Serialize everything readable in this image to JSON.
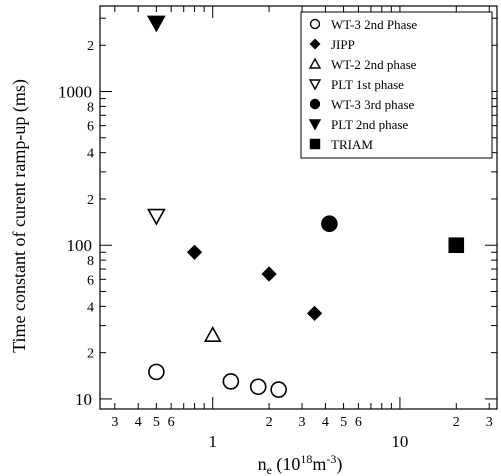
{
  "chart_data": {
    "type": "scatter",
    "title": "",
    "xlabel": "n_e (10^18 m^-3)",
    "xlabel_parts": {
      "main": "n",
      "sub": "e",
      "paren_open": " (10",
      "sup1": "18",
      "unit": "m",
      "sup2": "-3",
      "paren_close": ")"
    },
    "ylabel": "Time constant of curent ramp-up (ms)",
    "x_scale": "log",
    "y_scale": "log",
    "xlim": [
      0.25,
      33
    ],
    "ylim": [
      8.6,
      3600
    ],
    "x_major_ticks": [
      {
        "value": 1,
        "label": "1"
      },
      {
        "value": 10,
        "label": "10"
      }
    ],
    "x_minor_ticks": [
      {
        "value": 0.3,
        "label": "3"
      },
      {
        "value": 0.4,
        "label": "4"
      },
      {
        "value": 0.5,
        "label": "5"
      },
      {
        "value": 0.6,
        "label": "6"
      },
      {
        "value": 0.7,
        "label": ""
      },
      {
        "value": 0.8,
        "label": ""
      },
      {
        "value": 0.9,
        "label": ""
      },
      {
        "value": 2,
        "label": "2"
      },
      {
        "value": 3,
        "label": "3"
      },
      {
        "value": 4,
        "label": "4"
      },
      {
        "value": 5,
        "label": "5"
      },
      {
        "value": 6,
        "label": "6"
      },
      {
        "value": 7,
        "label": ""
      },
      {
        "value": 8,
        "label": ""
      },
      {
        "value": 9,
        "label": ""
      },
      {
        "value": 20,
        "label": "2"
      },
      {
        "value": 30,
        "label": "3"
      }
    ],
    "y_major_ticks": [
      {
        "value": 10,
        "label": "10"
      },
      {
        "value": 100,
        "label": "100"
      },
      {
        "value": 1000,
        "label": "1000"
      }
    ],
    "y_minor_ticks": [
      {
        "value": 20,
        "label": "2"
      },
      {
        "value": 30,
        "label": ""
      },
      {
        "value": 40,
        "label": "4"
      },
      {
        "value": 50,
        "label": ""
      },
      {
        "value": 60,
        "label": ""
      },
      {
        "value": 70,
        "label": ""
      },
      {
        "value": 80,
        "label": ""
      },
      {
        "value": 90,
        "label": ""
      },
      {
        "value": 200,
        "label": "2"
      },
      {
        "value": 300,
        "label": ""
      },
      {
        "value": 400,
        "label": "4"
      },
      {
        "value": 500,
        "label": ""
      },
      {
        "value": 600,
        "label": "6"
      },
      {
        "value": 700,
        "label": ""
      },
      {
        "value": 800,
        "label": "8"
      },
      {
        "value": 900,
        "label": ""
      },
      {
        "value": 2000,
        "label": "2"
      },
      {
        "value": 3000,
        "label": ""
      }
    ],
    "y_tick_label_overrides": [
      {
        "value": 60,
        "label": "6"
      },
      {
        "value": 80,
        "label": "8"
      }
    ],
    "grid": false,
    "legend_position": "top-right",
    "series": [
      {
        "name": "WT-3 2nd Phase",
        "marker": "circle-open",
        "points": [
          [
            0.5,
            15
          ],
          [
            1.25,
            13
          ],
          [
            1.75,
            12
          ],
          [
            2.25,
            11.5
          ]
        ]
      },
      {
        "name": "JIPP",
        "marker": "diamond-filled",
        "points": [
          [
            0.8,
            90
          ],
          [
            2.0,
            65
          ],
          [
            3.5,
            36
          ]
        ]
      },
      {
        "name": "WT-2 2nd phase",
        "marker": "triangle-up-open",
        "points": [
          [
            1.0,
            26
          ]
        ]
      },
      {
        "name": "PLT 1st phase",
        "marker": "triangle-down-open",
        "points": [
          [
            0.5,
            155
          ]
        ]
      },
      {
        "name": "WT-3 3rd phase",
        "marker": "circle-filled",
        "points": [
          [
            4.2,
            138
          ]
        ]
      },
      {
        "name": "PLT 2nd phase",
        "marker": "triangle-down-filled",
        "points": [
          [
            0.5,
            2800
          ]
        ]
      },
      {
        "name": "TRIAM",
        "marker": "square-filled",
        "points": [
          [
            20,
            100
          ]
        ]
      }
    ]
  }
}
